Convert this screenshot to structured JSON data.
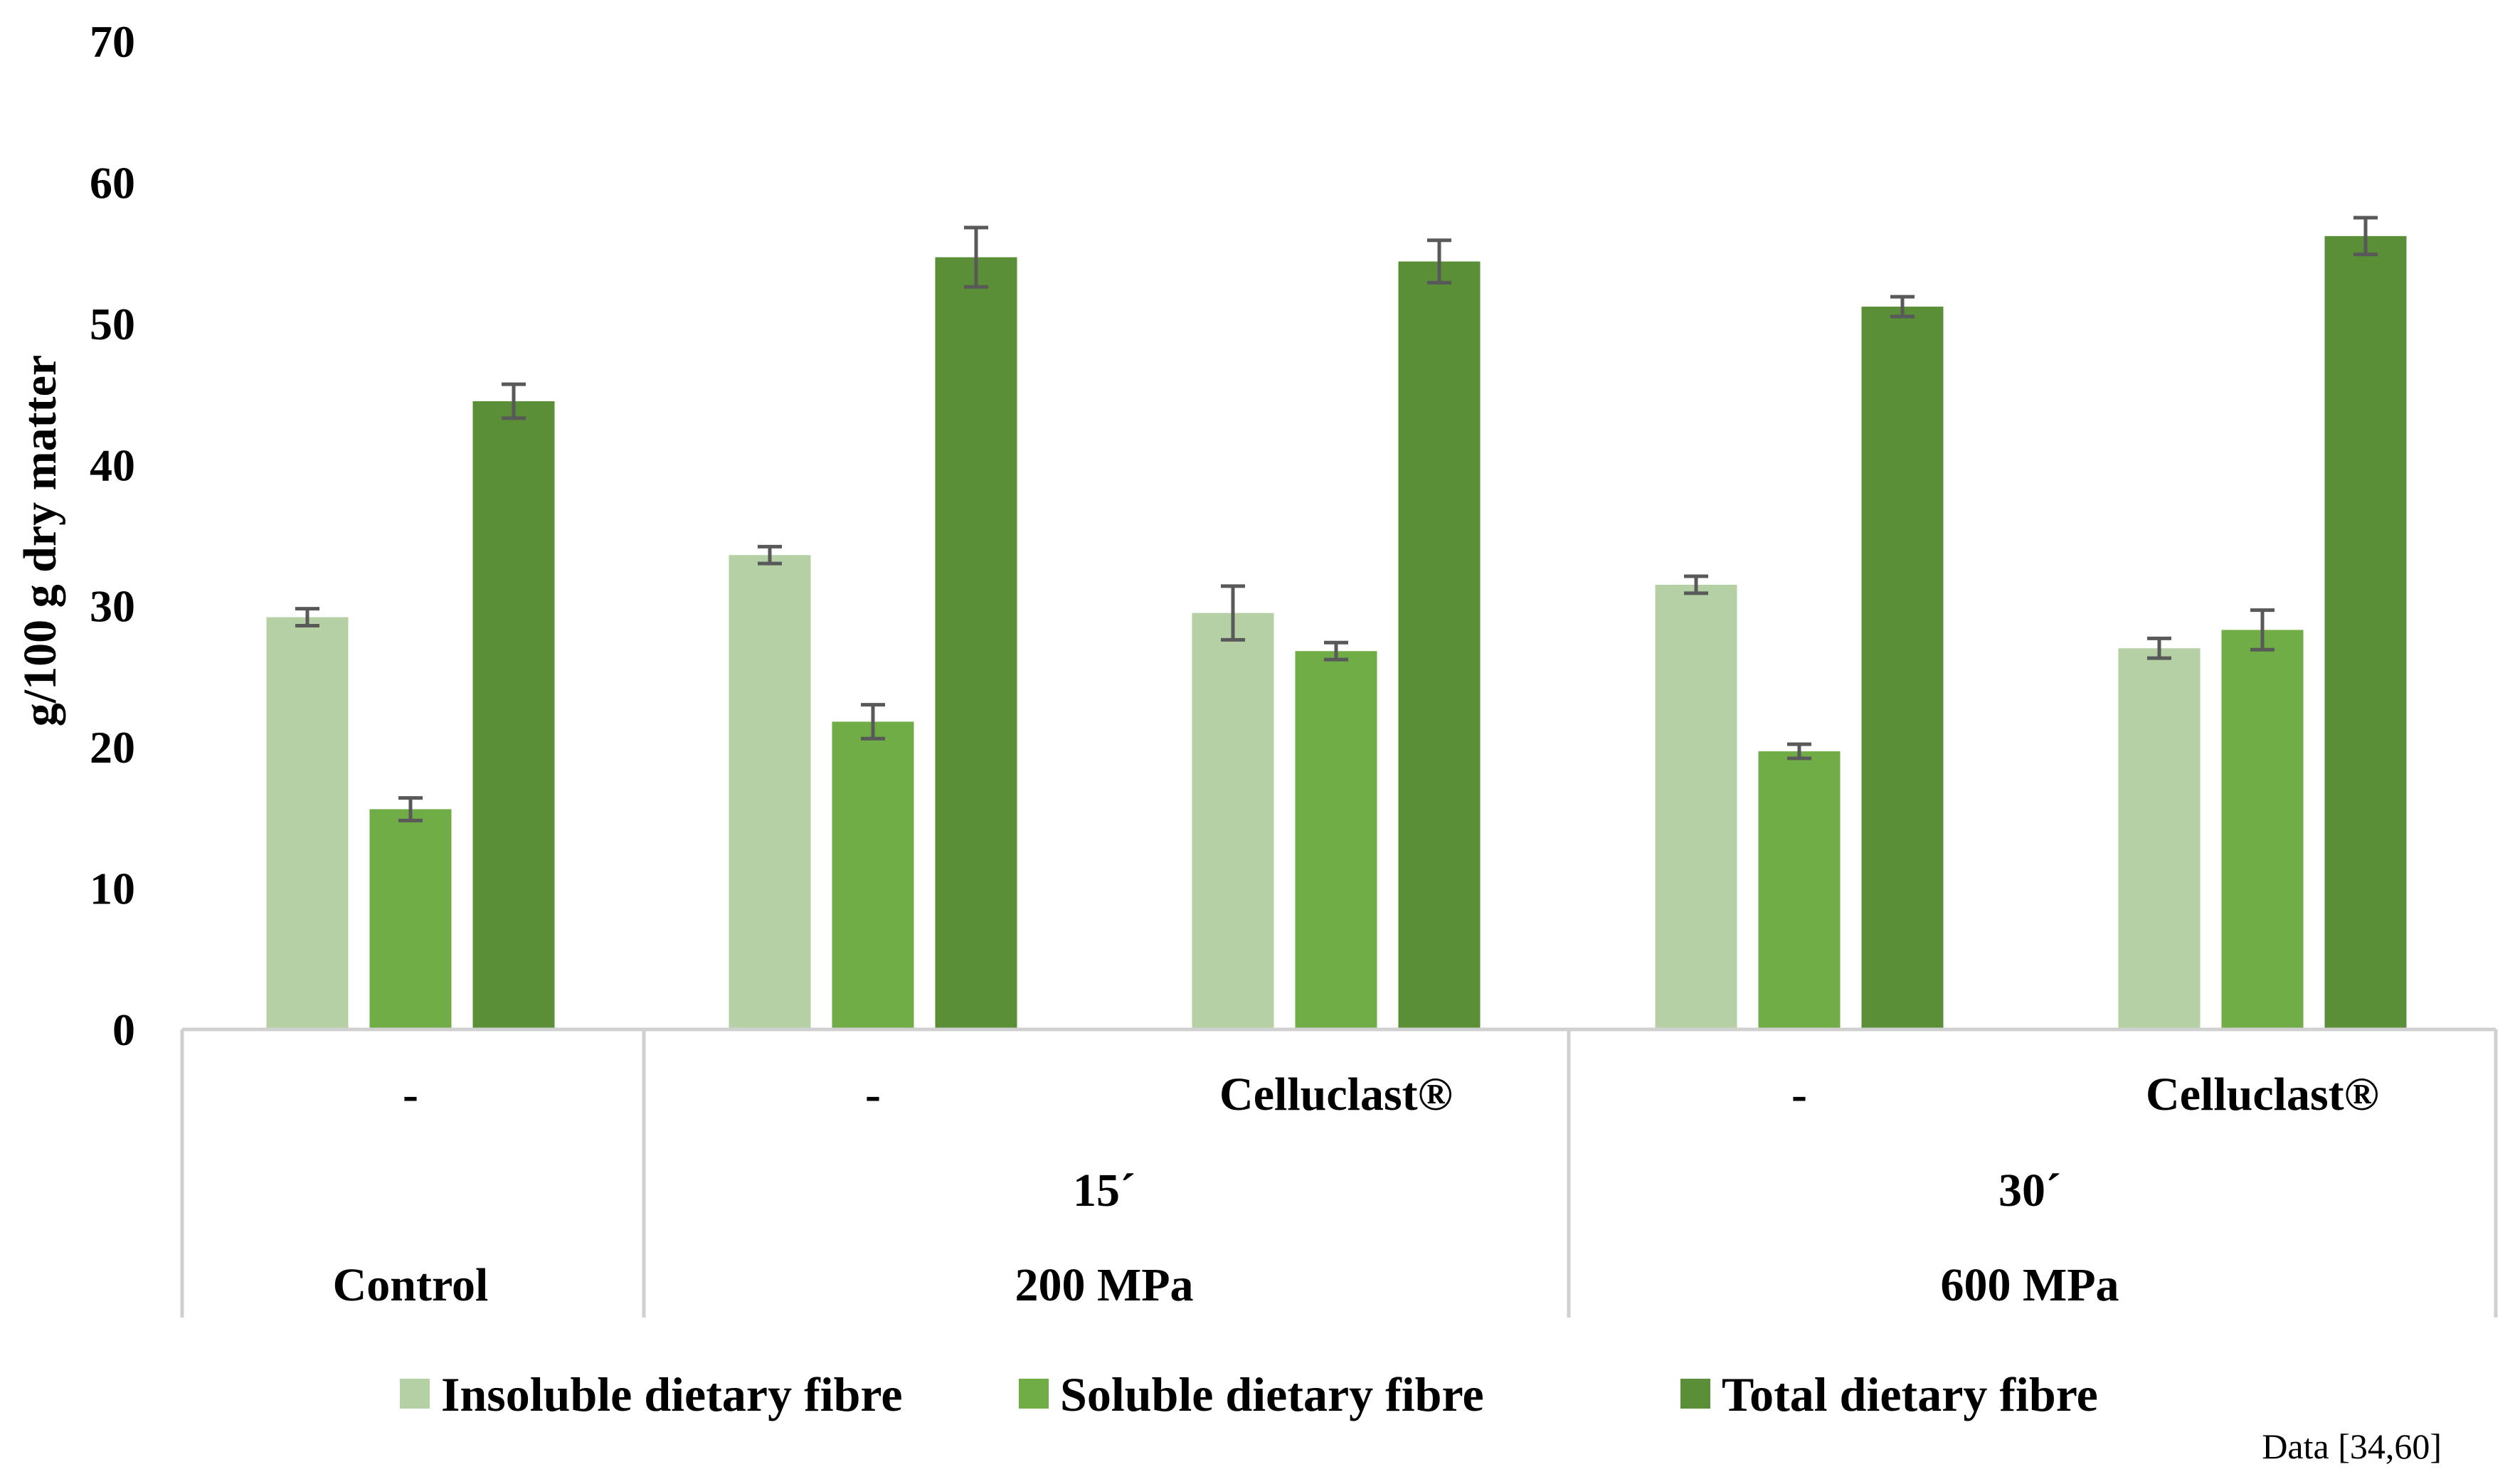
{
  "chart_data": {
    "type": "bar",
    "title": "",
    "ylabel": "g/100 g dry matter",
    "xlabel": "",
    "ylim": [
      0,
      70
    ],
    "yticks": [
      0,
      10,
      20,
      30,
      40,
      50,
      60,
      70
    ],
    "grid": false,
    "legend_position": "bottom",
    "categories": [
      {
        "level1": "-",
        "level2": "",
        "level3": "Control"
      },
      {
        "level1": "-",
        "level2": "15´",
        "level3": "200 MPa"
      },
      {
        "level1": "Celluclast®",
        "level2": "15´",
        "level3": "200 MPa"
      },
      {
        "level1": "-",
        "level2": "30´",
        "level3": "600 MPa"
      },
      {
        "level1": "Celluclast®",
        "level2": "30´",
        "level3": "600 MPa"
      }
    ],
    "level1_labels": [
      "-",
      "-",
      "Celluclast®",
      "-",
      "Celluclast®"
    ],
    "level2_labels": [
      "15´",
      "30´"
    ],
    "level3_labels": [
      "Control",
      "200 MPa",
      "600 MPa"
    ],
    "series": [
      {
        "name": "Insoluble dietary fibre",
        "color": "#b6d0a6",
        "values": [
          29.2,
          33.6,
          29.5,
          31.5,
          27.0
        ],
        "errors": [
          0.6,
          0.6,
          1.9,
          0.6,
          0.7
        ]
      },
      {
        "name": "Soluble dietary fibre",
        "color": "#70ad47",
        "values": [
          15.6,
          21.8,
          26.8,
          19.7,
          28.3
        ],
        "errors": [
          0.8,
          1.2,
          0.6,
          0.5,
          1.4
        ]
      },
      {
        "name": "Total dietary fibre",
        "color": "#5a8f37",
        "values": [
          44.5,
          54.7,
          54.4,
          51.2,
          56.2
        ],
        "errors": [
          1.2,
          2.1,
          1.5,
          0.7,
          1.3
        ]
      }
    ],
    "source_note": "Data [34,60]"
  }
}
